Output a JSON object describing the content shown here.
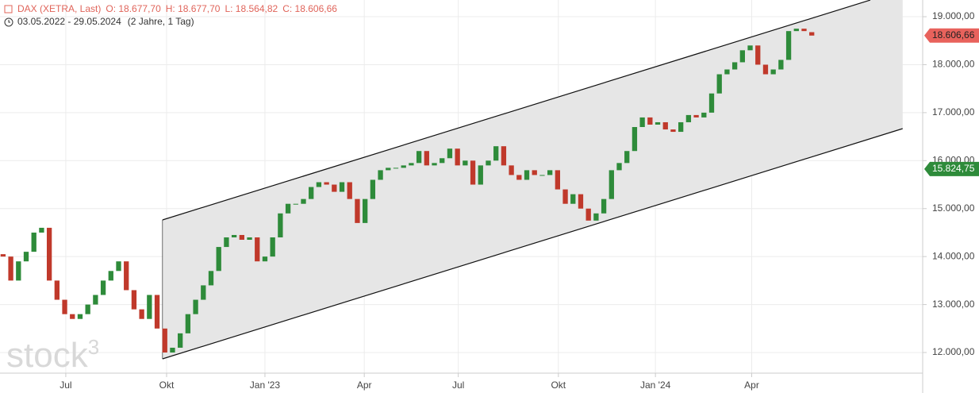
{
  "chart_data": {
    "type": "candlestick",
    "instrument": "DAX (XETRA, Last)",
    "quote": [
      "O: 18.677,70",
      "H: 18.677,70",
      "L: 18.564,82",
      "C: 18.606,66"
    ],
    "period": "03.05.2022 - 29.05.2024",
    "period_note": "(2 Jahre, 1 Tag)",
    "watermark": {
      "text": "stock",
      "sup": "3"
    },
    "up_color": "#2e8b3a",
    "down_color": "#c0392b",
    "grid": true,
    "x": [
      0,
      1,
      2,
      3,
      4,
      5,
      6,
      7,
      8,
      9,
      10,
      11,
      12,
      13,
      14,
      15,
      16,
      17,
      18,
      19,
      20,
      21,
      22,
      23,
      24,
      25,
      26,
      27,
      28,
      29,
      30,
      31,
      32,
      33,
      34,
      35,
      36,
      37,
      38,
      39,
      40,
      41,
      42,
      43,
      44,
      45,
      46,
      47,
      48,
      49,
      50,
      51,
      52,
      53,
      54,
      55,
      56,
      57,
      58,
      59,
      60,
      61,
      62,
      63,
      64,
      65,
      66,
      67,
      68,
      69,
      70,
      71,
      72,
      73,
      74,
      75,
      76,
      77,
      78,
      79,
      80,
      81,
      82,
      83,
      84,
      85,
      86,
      87,
      88,
      89,
      90,
      91,
      92,
      93,
      94,
      95,
      96,
      97,
      98,
      99,
      100,
      101,
      102,
      103,
      104,
      105
    ],
    "open": [
      14050,
      14000,
      13500,
      13900,
      14100,
      14500,
      14600,
      13500,
      13100,
      12800,
      12700,
      12800,
      13000,
      13200,
      13500,
      13700,
      13900,
      13300,
      12900,
      12700,
      13200,
      12500,
      12000,
      12100,
      12400,
      12800,
      13100,
      13400,
      13700,
      14200,
      14400,
      14450,
      14350,
      14400,
      13900,
      14000,
      14400,
      14900,
      15100,
      15100,
      15200,
      15450,
      15550,
      15500,
      15350,
      15550,
      15200,
      14700,
      15200,
      15600,
      15800,
      15850,
      15850,
      15900,
      15950,
      16200,
      15900,
      15950,
      16050,
      16250,
      15900,
      16000,
      15500,
      15900,
      16000,
      16300,
      15900,
      15700,
      15600,
      15800,
      15700,
      15700,
      15800,
      15400,
      15100,
      15300,
      15000,
      14750,
      14900,
      15200,
      15800,
      15950,
      16200,
      16700,
      16900,
      16750,
      16800,
      16650,
      16600,
      16800,
      16950,
      16900,
      17000,
      17400,
      17800,
      17900,
      18050,
      18300,
      18400,
      18000,
      17800,
      17900,
      18100,
      18700,
      18750,
      18677.7
    ],
    "close": [
      14000,
      13500,
      13900,
      14100,
      14500,
      14600,
      13500,
      13100,
      12800,
      12700,
      12800,
      13000,
      13200,
      13500,
      13700,
      13900,
      13300,
      12900,
      12700,
      13200,
      12500,
      12000,
      12100,
      12400,
      12800,
      13100,
      13400,
      13700,
      14200,
      14400,
      14450,
      14350,
      14400,
      13900,
      14000,
      14400,
      14900,
      15100,
      15100,
      15200,
      15450,
      15550,
      15500,
      15350,
      15550,
      15200,
      14700,
      15200,
      15600,
      15800,
      15850,
      15850,
      15900,
      15950,
      16200,
      15900,
      15950,
      16050,
      16250,
      15900,
      16000,
      15500,
      15900,
      16000,
      16300,
      15900,
      15700,
      15600,
      15800,
      15700,
      15700,
      15800,
      15400,
      15100,
      15300,
      15000,
      14750,
      14900,
      15200,
      15800,
      15950,
      16200,
      16700,
      16900,
      16750,
      16800,
      16650,
      16600,
      16800,
      16950,
      16900,
      17000,
      17400,
      17800,
      17900,
      18050,
      18300,
      18400,
      18000,
      17800,
      17900,
      18100,
      18700,
      18750,
      18700,
      18606.66
    ],
    "channel": {
      "x_upper": [
        20.7,
        112.6
      ],
      "upper": [
        14764,
        19347
      ],
      "x_lower": [
        20.7,
        116.8
      ],
      "lower": [
        11868,
        16667
      ],
      "color": "#e6e6e6"
    },
    "price_markers": [
      {
        "value": 18606.66,
        "label": "18.606,66",
        "color": "#e8625c",
        "text_color": "#222"
      },
      {
        "value": 15824.75,
        "label": "15.824,75",
        "color": "#2e8b3a",
        "text_color": "#fff"
      }
    ],
    "xlim": [
      -0.4,
      119.4
    ],
    "xticks": [
      {
        "value": 8.14,
        "label": "Jul"
      },
      {
        "value": 21.23,
        "label": "Okt"
      },
      {
        "value": 34.0,
        "label": "Jan '23"
      },
      {
        "value": 46.9,
        "label": "Apr"
      },
      {
        "value": 59.1,
        "label": "Jul"
      },
      {
        "value": 72.1,
        "label": "Okt"
      },
      {
        "value": 84.7,
        "label": "Jan '24"
      },
      {
        "value": 97.2,
        "label": "Apr"
      }
    ],
    "ylim": [
      11570,
      19348
    ],
    "yticks": [
      {
        "value": 12000,
        "label": "12.000,00"
      },
      {
        "value": 13000,
        "label": "13.000,00"
      },
      {
        "value": 14000,
        "label": "14.000,00"
      },
      {
        "value": 15000,
        "label": "15.000,00"
      },
      {
        "value": 16000,
        "label": "16.000,00"
      },
      {
        "value": 17000,
        "label": "17.000,00"
      },
      {
        "value": 18000,
        "label": "18.000,00"
      },
      {
        "value": 19000,
        "label": "19.000,00"
      }
    ]
  }
}
